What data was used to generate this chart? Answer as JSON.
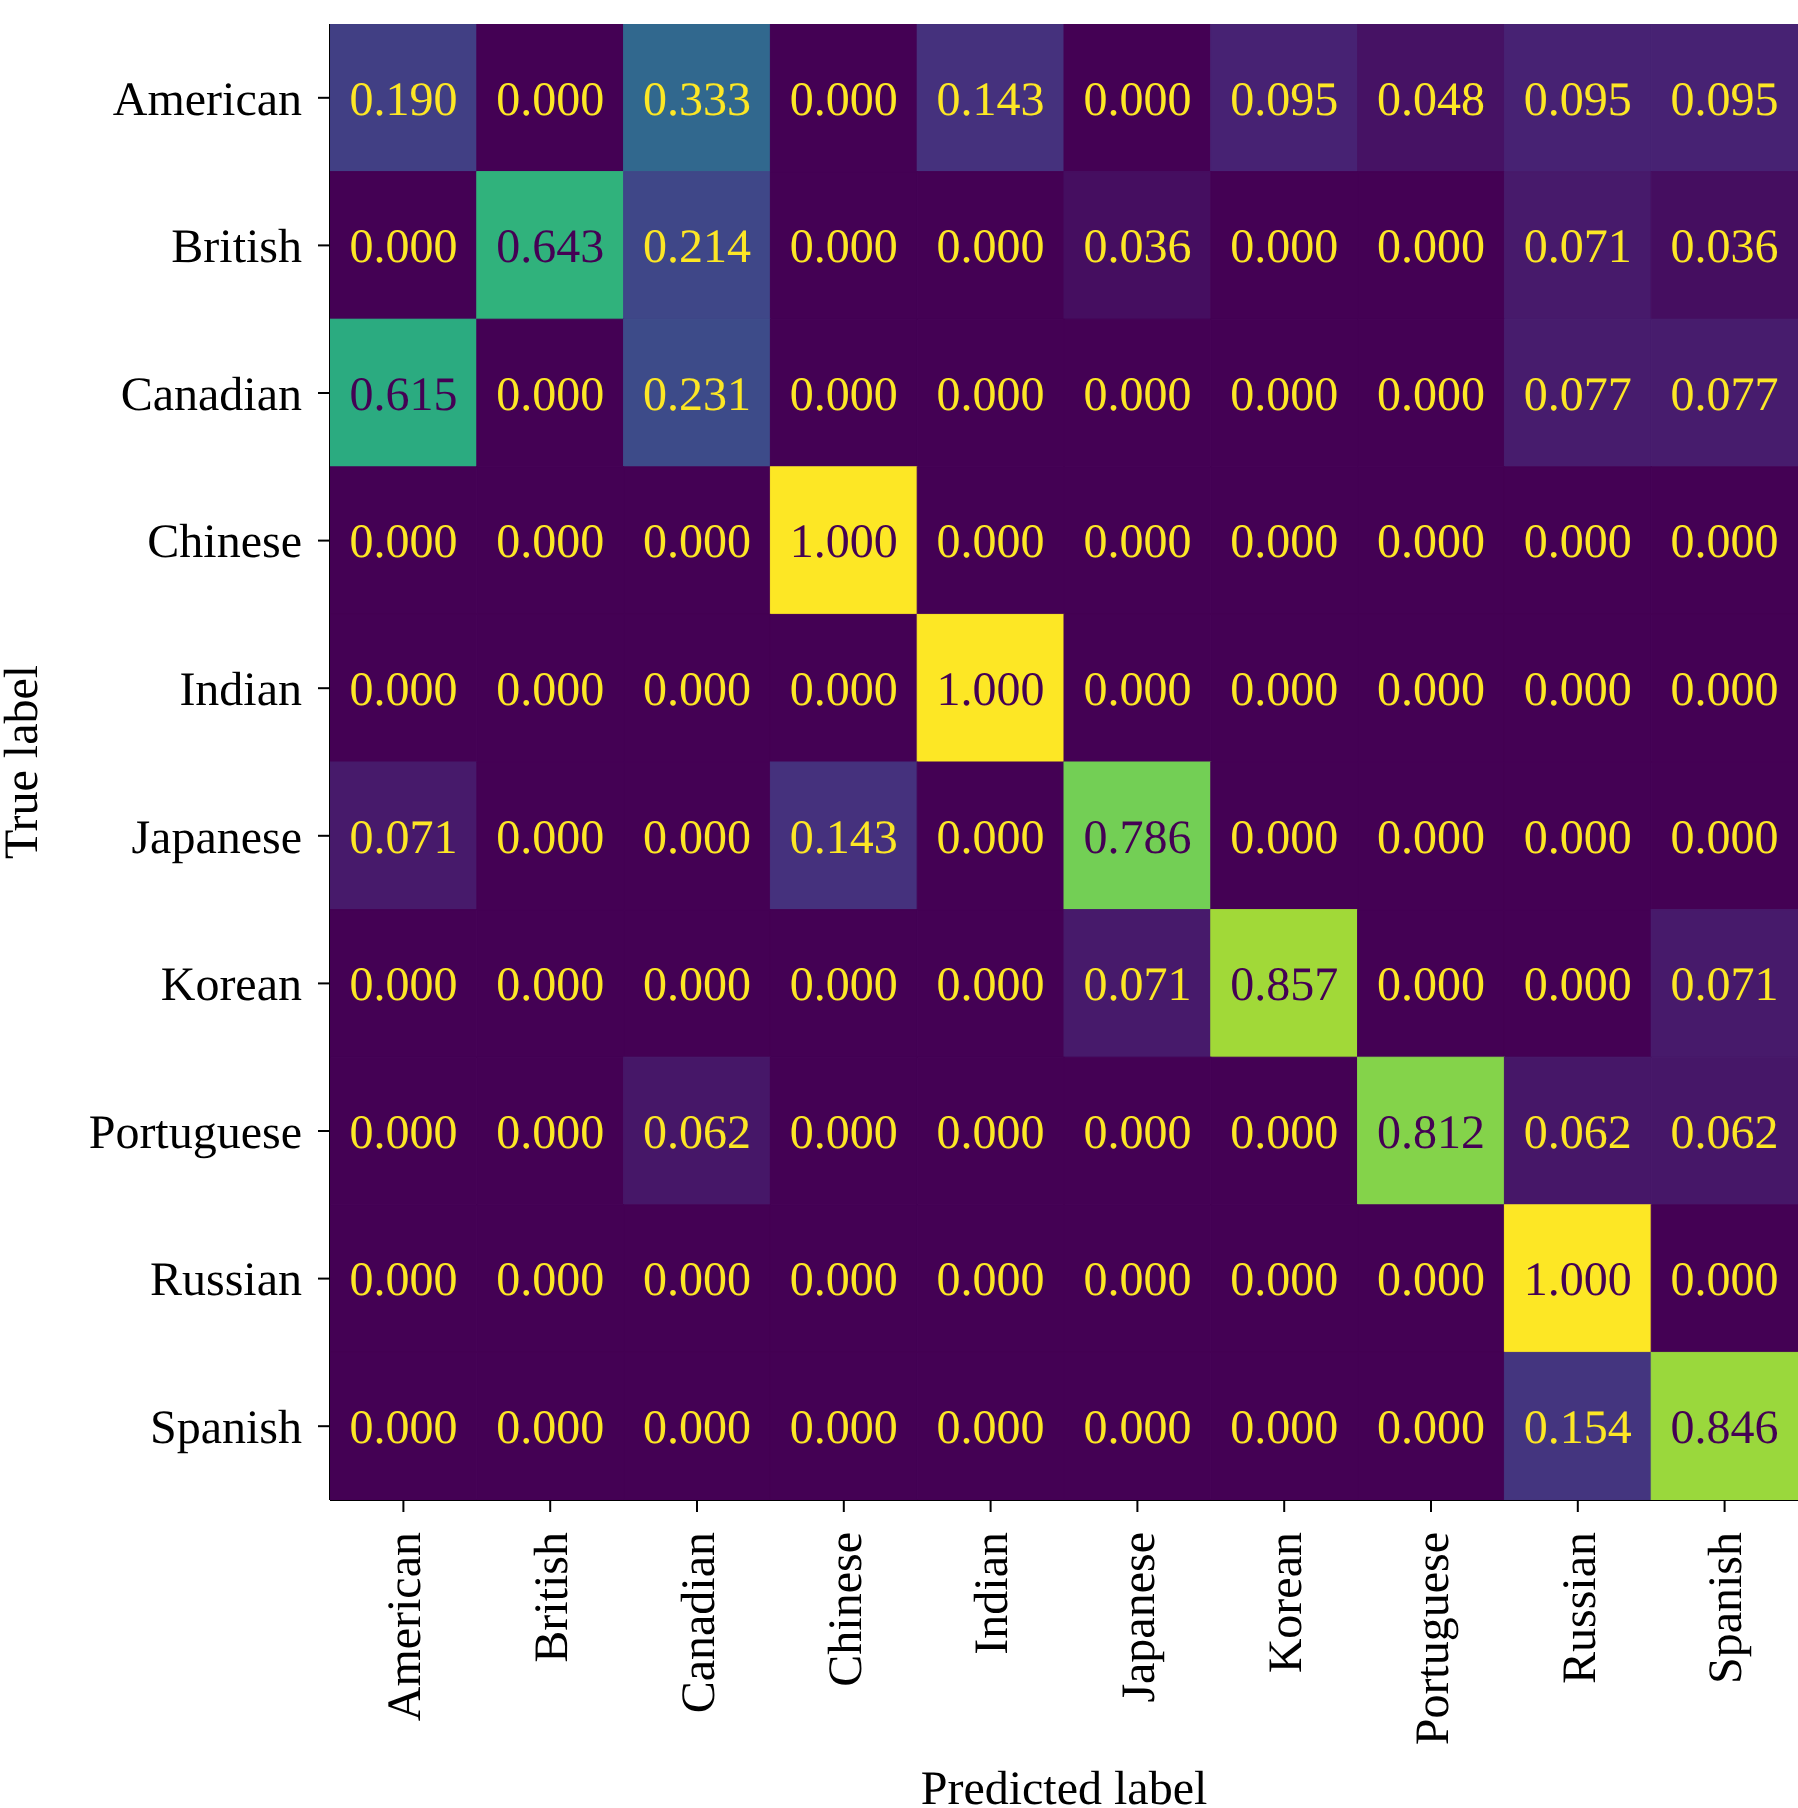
{
  "chart_data": {
    "type": "heatmap",
    "xlabel": "Predicted label",
    "ylabel": "True label",
    "categories": [
      "American",
      "British",
      "Canadian",
      "Chinese",
      "Indian",
      "Japanese",
      "Korean",
      "Portuguese",
      "Russian",
      "Spanish"
    ],
    "y_categories": [
      "American",
      "British",
      "Canadian",
      "Chinese",
      "Indian",
      "Japanese",
      "Korean",
      "Portuguese",
      "Russian",
      "Spanish"
    ],
    "cells": [
      [
        0.19,
        0,
        0.333,
        0,
        0.143,
        0,
        0.095,
        0.048,
        0.095,
        0.095
      ],
      [
        0,
        0.643,
        0.214,
        0,
        0,
        0.036,
        0,
        0,
        0.071,
        0.036
      ],
      [
        0.615,
        0,
        0.231,
        0,
        0,
        0,
        0,
        0,
        0.077,
        0.077
      ],
      [
        0,
        0,
        0,
        1,
        0,
        0,
        0,
        0,
        0,
        0
      ],
      [
        0,
        0,
        0,
        0,
        1,
        0,
        0,
        0,
        0,
        0
      ],
      [
        0.071,
        0,
        0,
        0.143,
        0,
        0.786,
        0,
        0,
        0,
        0
      ],
      [
        0,
        0,
        0,
        0,
        0,
        0.071,
        0.857,
        0,
        0,
        0.071
      ],
      [
        0,
        0,
        0.062,
        0,
        0,
        0,
        0,
        0.812,
        0.062,
        0.062
      ],
      [
        0,
        0,
        0,
        0,
        0,
        0,
        0,
        0,
        1,
        0
      ],
      [
        0,
        0,
        0,
        0,
        0,
        0,
        0,
        0,
        0.154,
        0.846
      ]
    ],
    "cell_labels": [
      [
        "0.190",
        "0.000",
        "0.333",
        "0.000",
        "0.143",
        "0.000",
        "0.095",
        "0.048",
        "0.095",
        "0.095"
      ],
      [
        "0.000",
        "0.643",
        "0.214",
        "0.000",
        "0.000",
        "0.036",
        "0.000",
        "0.000",
        "0.071",
        "0.036"
      ],
      [
        "0.615",
        "0.000",
        "0.231",
        "0.000",
        "0.000",
        "0.000",
        "0.000",
        "0.000",
        "0.077",
        "0.077"
      ],
      [
        "0.000",
        "0.000",
        "0.000",
        "1.000",
        "0.000",
        "0.000",
        "0.000",
        "0.000",
        "0.000",
        "0.000"
      ],
      [
        "0.000",
        "0.000",
        "0.000",
        "0.000",
        "1.000",
        "0.000",
        "0.000",
        "0.000",
        "0.000",
        "0.000"
      ],
      [
        "0.071",
        "0.000",
        "0.000",
        "0.143",
        "0.000",
        "0.786",
        "0.000",
        "0.000",
        "0.000",
        "0.000"
      ],
      [
        "0.000",
        "0.000",
        "0.000",
        "0.000",
        "0.000",
        "0.071",
        "0.857",
        "0.000",
        "0.000",
        "0.071"
      ],
      [
        "0.000",
        "0.000",
        "0.062",
        "0.000",
        "0.000",
        "0.000",
        "0.000",
        "0.812",
        "0.062",
        "0.062"
      ],
      [
        "0.000",
        "0.000",
        "0.000",
        "0.000",
        "0.000",
        "0.000",
        "0.000",
        "0.000",
        "1.000",
        "0.000"
      ],
      [
        "0.000",
        "0.000",
        "0.000",
        "0.000",
        "0.000",
        "0.000",
        "0.000",
        "0.000",
        "0.154",
        "0.846"
      ]
    ]
  }
}
